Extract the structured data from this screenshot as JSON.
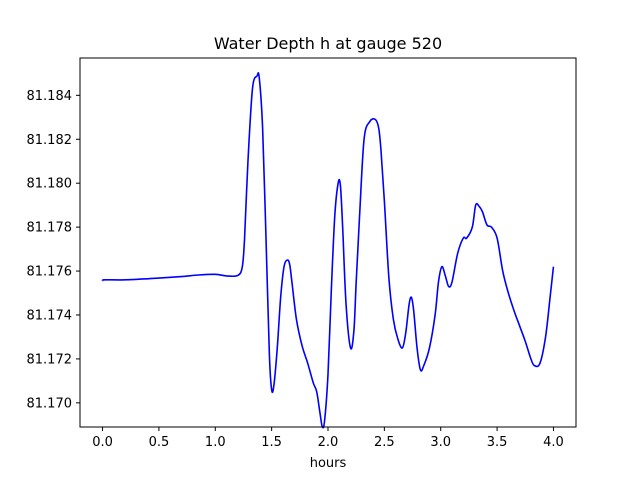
{
  "chart_data": {
    "type": "line",
    "title": "Water Depth h at gauge 520",
    "xlabel": "hours",
    "ylabel": "",
    "xlim": [
      -0.2,
      4.2
    ],
    "ylim": [
      81.1689,
      81.1857
    ],
    "x_ticks": [
      0.0,
      0.5,
      1.0,
      1.5,
      2.0,
      2.5,
      3.0,
      3.5,
      4.0
    ],
    "x_tick_labels": [
      "0.0",
      "0.5",
      "1.0",
      "1.5",
      "2.0",
      "2.5",
      "3.0",
      "3.5",
      "4.0"
    ],
    "y_ticks": [
      81.17,
      81.172,
      81.174,
      81.176,
      81.178,
      81.18,
      81.182,
      81.184
    ],
    "y_tick_labels": [
      "81.170",
      "81.172",
      "81.174",
      "81.176",
      "81.178",
      "81.180",
      "81.182",
      "81.184"
    ],
    "grid": false,
    "series": [
      {
        "color": "#0000ff",
        "x": [
          0.0,
          0.02,
          0.2,
          0.5,
          0.7,
          0.85,
          1.0,
          1.1,
          1.2,
          1.24,
          1.26,
          1.29,
          1.33,
          1.37,
          1.39,
          1.42,
          1.45,
          1.48,
          1.5,
          1.52,
          1.55,
          1.58,
          1.61,
          1.64,
          1.66,
          1.68,
          1.72,
          1.77,
          1.82,
          1.87,
          1.9,
          1.93,
          1.95,
          1.97,
          2.0,
          2.03,
          2.06,
          2.09,
          2.11,
          2.13,
          2.16,
          2.2,
          2.23,
          2.25,
          2.28,
          2.32,
          2.37,
          2.42,
          2.45,
          2.47,
          2.5,
          2.54,
          2.58,
          2.62,
          2.66,
          2.69,
          2.72,
          2.74,
          2.76,
          2.79,
          2.82,
          2.85,
          2.9,
          2.95,
          2.98,
          3.01,
          3.04,
          3.07,
          3.1,
          3.15,
          3.2,
          3.23,
          3.28,
          3.31,
          3.34,
          3.37,
          3.41,
          3.45,
          3.5,
          3.55,
          3.6,
          3.65,
          3.7,
          3.75,
          3.8,
          3.83,
          3.88,
          3.93,
          3.97,
          4.0
        ],
        "y": [
          81.17555,
          81.1756,
          81.1756,
          81.17568,
          81.17575,
          81.17582,
          81.17585,
          81.17578,
          81.1758,
          81.1762,
          81.1775,
          81.181,
          81.1843,
          81.18488,
          81.1848,
          81.1825,
          81.1775,
          81.1722,
          81.1706,
          81.1708,
          81.1725,
          81.1748,
          81.1762,
          81.1765,
          81.1763,
          81.1755,
          81.1738,
          81.1726,
          81.1718,
          81.1709,
          81.1705,
          81.1695,
          81.1689,
          81.1692,
          81.1713,
          81.1752,
          81.1785,
          81.18,
          81.1799,
          81.178,
          81.1745,
          81.1725,
          81.1733,
          81.1755,
          81.1785,
          81.182,
          81.1828,
          81.1829,
          81.1825,
          81.1815,
          81.1792,
          81.1757,
          81.1738,
          81.1729,
          81.1725,
          81.1732,
          81.1745,
          81.1748,
          81.1742,
          81.1725,
          81.1715,
          81.1717,
          81.1725,
          81.174,
          81.1755,
          81.1762,
          81.1758,
          81.1753,
          81.1755,
          81.1768,
          81.1775,
          81.1775,
          81.178,
          81.179,
          81.17895,
          81.1787,
          81.1781,
          81.178,
          81.1775,
          81.176,
          81.175,
          81.1742,
          81.1735,
          81.1728,
          81.172,
          81.1717,
          81.1718,
          81.173,
          81.1748,
          81.1762
        ]
      }
    ]
  }
}
